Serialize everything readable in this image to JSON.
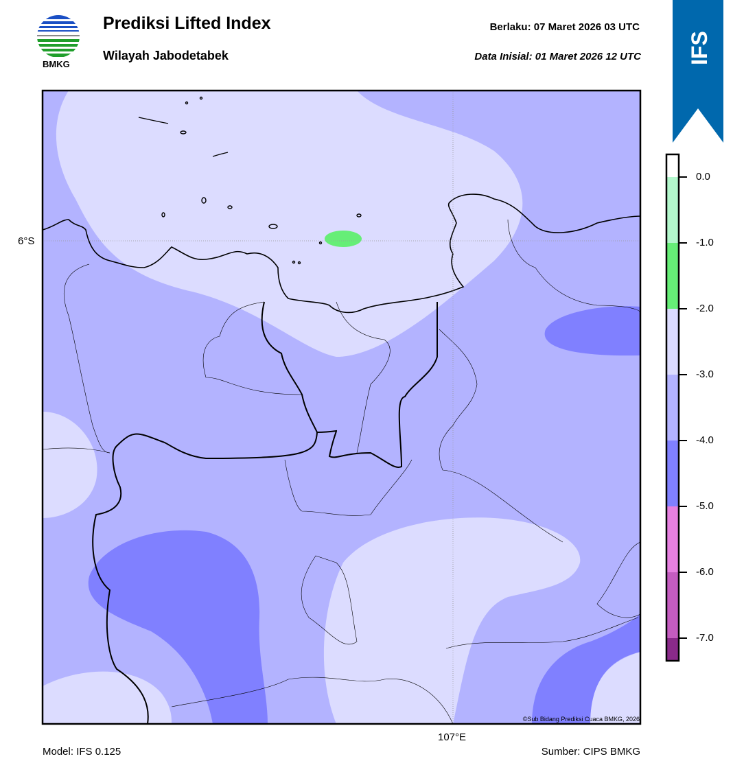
{
  "header": {
    "logo_text": "BMKG",
    "title": "Prediksi Lifted Index",
    "subtitle": "Wilayah Jabodetabek",
    "valid_label": "Berlaku:  07 Maret 2026 03 UTC",
    "init_label": "Data Inisial:  01 Maret 2026 12 UTC",
    "model_badge": "IFS",
    "badge_color": "#0068ad"
  },
  "map": {
    "lat_label": "6°S",
    "lon_label": "107°E",
    "copyright": "©Sub Bidang Prediksi Cuaca BMKG, 2026"
  },
  "colorbar": {
    "labels": [
      "0.0",
      "-1.0",
      "-2.0",
      "-3.0",
      "-4.0",
      "-5.0",
      "-6.0",
      "-7.0"
    ],
    "colors": [
      "#ffffff",
      "#b3f7cc",
      "#66ee77",
      "#dcdcff",
      "#b3b3ff",
      "#8080ff",
      "#e680e0",
      "#c45cc0",
      "#8a2a8a"
    ]
  },
  "footer": {
    "model": "Model: IFS 0.125",
    "source": "Sumber: CIPS BMKG"
  }
}
